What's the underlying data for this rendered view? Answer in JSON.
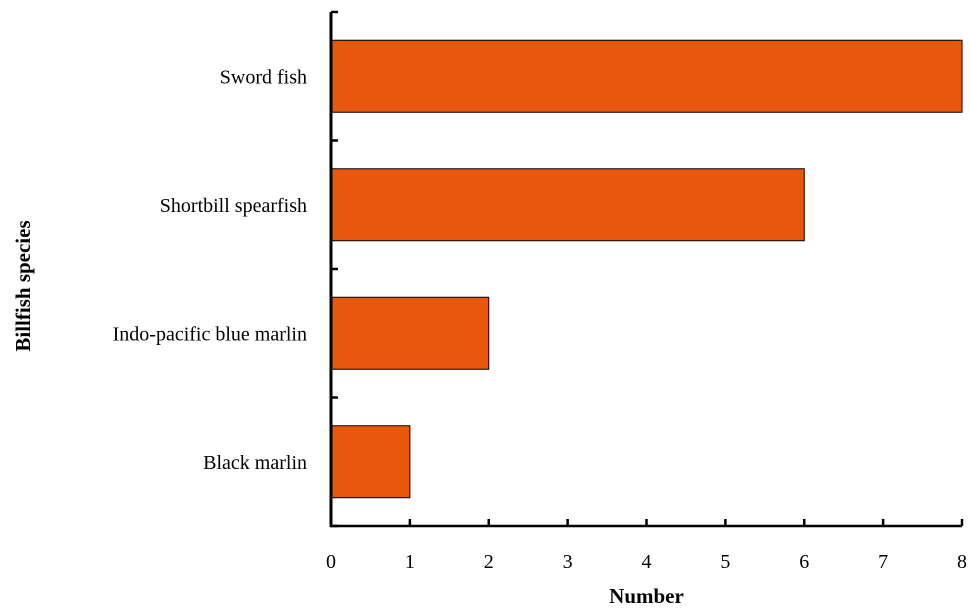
{
  "chart_data": {
    "type": "bar",
    "orientation": "horizontal",
    "categories": [
      "Sword fish",
      "Shortbill spearfish",
      "Indo-pacific blue marlin",
      "Black marlin"
    ],
    "values": [
      8,
      6,
      2,
      1
    ],
    "xlabel": "Number",
    "ylabel": "Billfish species",
    "xlim": [
      0,
      8
    ],
    "xticks": [
      "0",
      "1",
      "2",
      "3",
      "4",
      "5",
      "6",
      "7",
      "8"
    ],
    "grid": false,
    "legend": "none",
    "bar_color": "#E8580C",
    "edge_color": "#000000"
  }
}
